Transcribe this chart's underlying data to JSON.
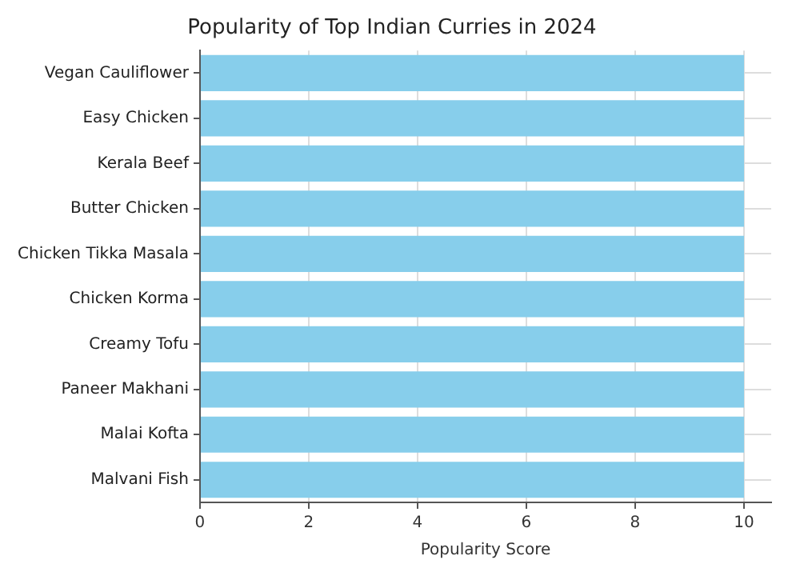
{
  "chart_data": {
    "type": "bar",
    "orientation": "horizontal",
    "title": "Popularity of Top Indian Curries in 2024",
    "xlabel": "Popularity Score",
    "categories": [
      "Vegan Cauliflower",
      "Easy Chicken",
      "Kerala Beef",
      "Butter Chicken",
      "Chicken Tikka Masala",
      "Chicken Korma",
      "Creamy Tofu",
      "Paneer Makhani",
      "Malai Kofta",
      "Malvani Fish"
    ],
    "values": [
      10,
      10,
      10,
      10,
      10,
      10,
      10,
      10,
      10,
      10
    ],
    "color": "#87ceeb",
    "xlim": [
      0,
      10.5
    ],
    "xticks": [
      0,
      2,
      4,
      6,
      8,
      10
    ],
    "grid": true
  }
}
